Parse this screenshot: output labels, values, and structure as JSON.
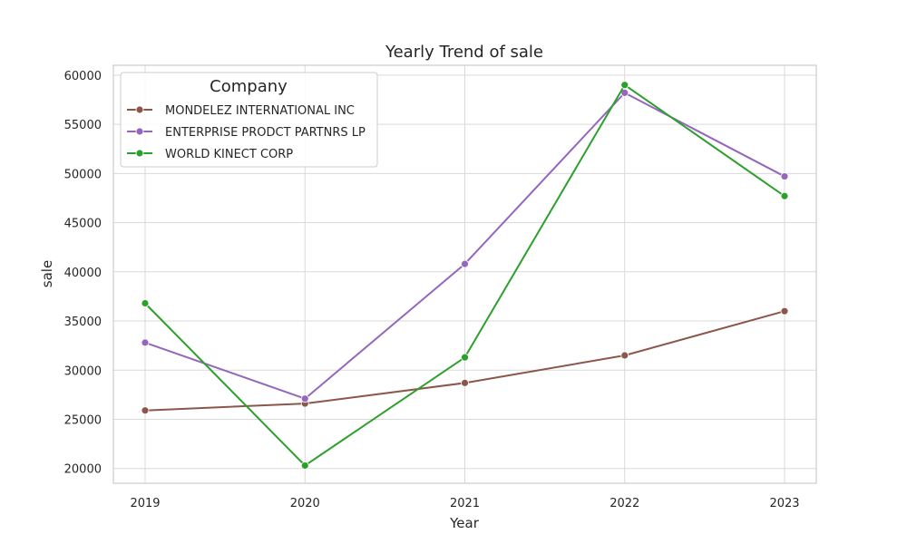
{
  "chart_data": {
    "type": "line",
    "title": "Yearly Trend of sale",
    "xlabel": "Year",
    "ylabel": "sale",
    "x": [
      "2019",
      "2020",
      "2021",
      "2022",
      "2023"
    ],
    "yticks": [
      20000,
      25000,
      30000,
      35000,
      40000,
      45000,
      50000,
      55000,
      60000
    ],
    "ylim": [
      18500,
      61000
    ],
    "grid": true,
    "legend": {
      "title": "Company",
      "placement": "top-left"
    },
    "series": [
      {
        "name": "MONDELEZ INTERNATIONAL INC",
        "color": "#8c564b",
        "values": [
          25900,
          26600,
          28700,
          31500,
          36000
        ]
      },
      {
        "name": "ENTERPRISE PRODCT PARTNRS LP",
        "color": "#9467bd",
        "values": [
          32800,
          27100,
          40800,
          58200,
          49700
        ]
      },
      {
        "name": "WORLD KINECT CORP",
        "color": "#2ca02c",
        "values": [
          36800,
          20300,
          31300,
          59000,
          47700
        ]
      }
    ]
  }
}
